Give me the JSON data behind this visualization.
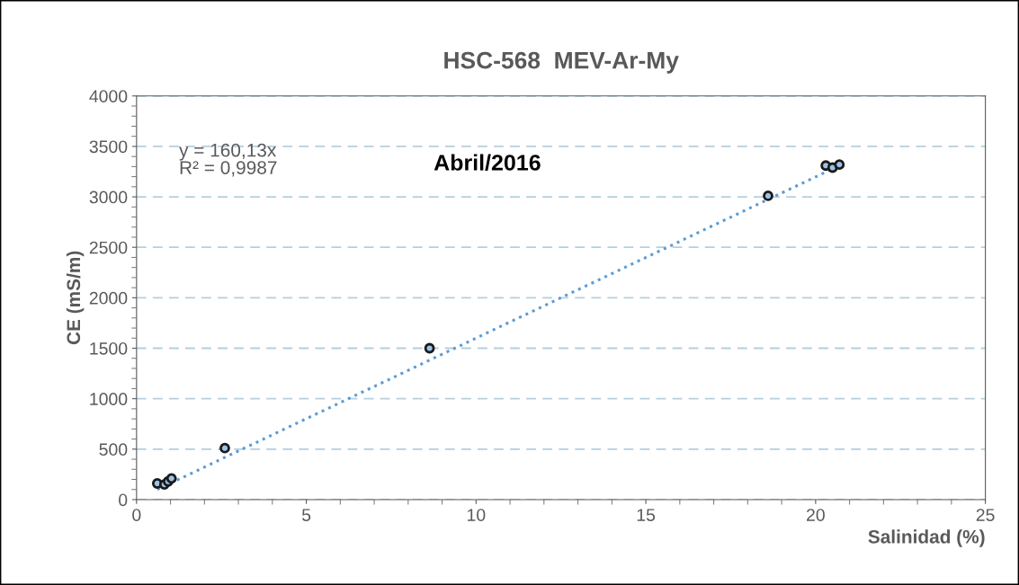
{
  "chart_data": {
    "type": "scatter",
    "title": "HSC-568  MEV-Ar-My",
    "xlabel": "Salinidad (%)",
    "ylabel": "CE (mS/m)",
    "annotations": [
      "y = 160,13x\nR² = 0,9987",
      "Abril/2016"
    ],
    "series": [
      {
        "color": "#9dc3e6",
        "marker": "circle",
        "x": [
          0.61,
          0.82,
          0.93,
          1.03,
          2.6,
          8.63,
          18.6,
          20.3,
          20.5,
          20.7
        ],
        "values": [
          160,
          150,
          180,
          210,
          510,
          1500,
          3010,
          3310,
          3290,
          3320
        ]
      },
      {
        "type": "line",
        "color": "#5b9bd5",
        "marker": "none",
        "line_style": "dotted",
        "x": [
          0.61,
          20.7
        ],
        "values": [
          100,
          3310
        ]
      }
    ],
    "xlim": [
      0,
      25
    ],
    "xticks": [
      0,
      5,
      10,
      15,
      20,
      25
    ],
    "ylim": [
      0,
      4000
    ],
    "yticks": [
      0,
      500,
      1000,
      1500,
      2000,
      2500,
      3000,
      3500,
      4000
    ],
    "grid": "y",
    "legend": false
  }
}
